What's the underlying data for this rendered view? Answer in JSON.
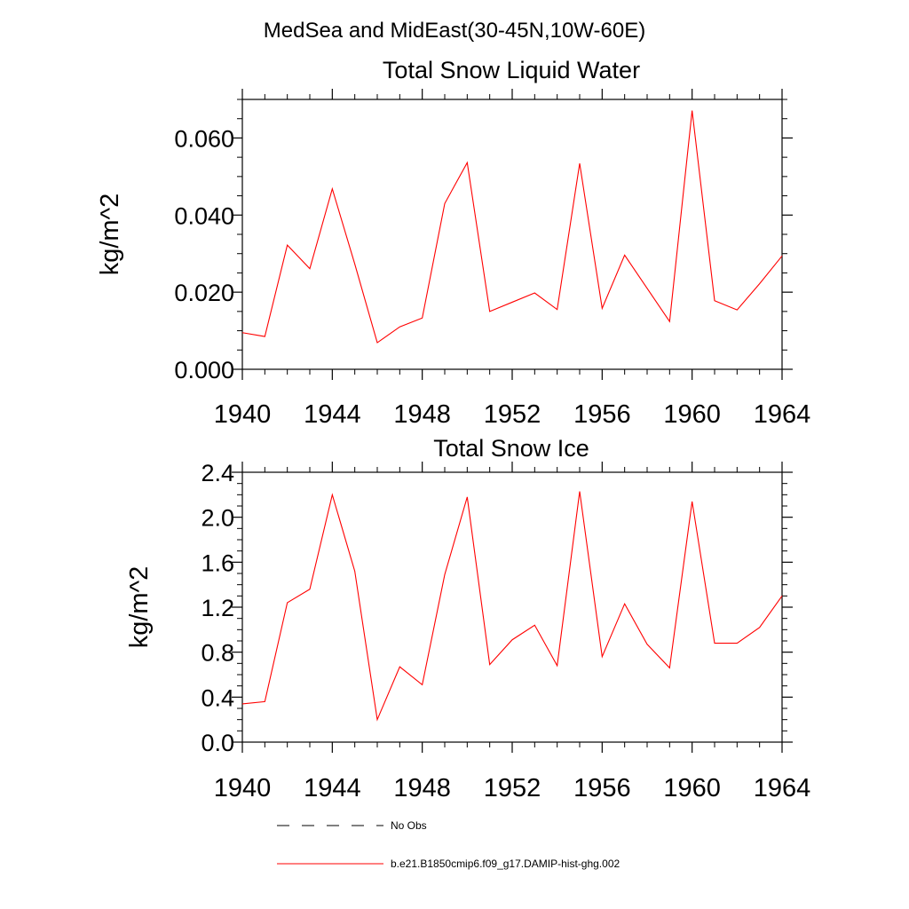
{
  "suptitle": "MedSea and MidEast(30-45N,10W-60E)",
  "colors": {
    "series": "#ff0000",
    "axes": "#000000",
    "noobs": "#000000"
  },
  "legend": {
    "items": [
      {
        "label": "No Obs",
        "style": "dashed"
      },
      {
        "label": "b.e21.B1850cmip6.f09_g17.DAMIP-hist-ghg.002",
        "style": "solid-red"
      }
    ]
  },
  "chart_data": [
    {
      "type": "line",
      "title": "Total Snow Liquid Water",
      "xlabel": "",
      "ylabel": "kg/m^2",
      "xlim": [
        1940,
        1964
      ],
      "ylim": [
        0,
        0.07
      ],
      "xticks": [
        1940,
        1944,
        1948,
        1952,
        1956,
        1960,
        1964
      ],
      "xtick_labels": [
        "1940",
        "1944",
        "1948",
        "1952",
        "1956",
        "1960",
        "1964"
      ],
      "yticks": [
        0,
        0.02,
        0.04,
        0.06
      ],
      "ytick_labels": [
        "0.000",
        "0.020",
        "0.040",
        "0.060"
      ],
      "x": [
        1940,
        1941,
        1942,
        1943,
        1944,
        1945,
        1946,
        1947,
        1948,
        1949,
        1950,
        1951,
        1952,
        1953,
        1954,
        1955,
        1956,
        1957,
        1958,
        1959,
        1960,
        1961,
        1962,
        1963,
        1964
      ],
      "series": [
        {
          "name": "b.e21.B1850cmip6.f09_g17.DAMIP-hist-ghg.002",
          "values": [
            0.0095,
            0.0085,
            0.0322,
            0.0261,
            0.0468,
            0.0273,
            0.0069,
            0.011,
            0.0133,
            0.043,
            0.0536,
            0.015,
            0.0174,
            0.0198,
            0.0155,
            0.0534,
            0.0158,
            0.0296,
            0.021,
            0.0124,
            0.0671,
            0.0178,
            0.0154,
            0.0222,
            0.0294
          ]
        }
      ]
    },
    {
      "type": "line",
      "title": "Total Snow Ice",
      "xlabel": "",
      "ylabel": "kg/m^2",
      "xlim": [
        1940,
        1964
      ],
      "ylim": [
        0,
        2.4
      ],
      "xticks": [
        1940,
        1944,
        1948,
        1952,
        1956,
        1960,
        1964
      ],
      "xtick_labels": [
        "1940",
        "1944",
        "1948",
        "1952",
        "1956",
        "1960",
        "1964"
      ],
      "yticks": [
        0,
        0.4,
        0.8,
        1.2,
        1.6,
        2.0,
        2.4
      ],
      "ytick_labels": [
        "0.0",
        "0.4",
        "0.8",
        "1.2",
        "1.6",
        "2.0",
        "2.4"
      ],
      "x": [
        1940,
        1941,
        1942,
        1943,
        1944,
        1945,
        1946,
        1947,
        1948,
        1949,
        1950,
        1951,
        1952,
        1953,
        1954,
        1955,
        1956,
        1957,
        1958,
        1959,
        1960,
        1961,
        1962,
        1963,
        1964
      ],
      "series": [
        {
          "name": "b.e21.B1850cmip6.f09_g17.DAMIP-hist-ghg.002",
          "values": [
            0.34,
            0.36,
            1.24,
            1.36,
            2.2,
            1.52,
            0.2,
            0.67,
            0.51,
            1.49,
            2.18,
            0.69,
            0.91,
            1.04,
            0.68,
            2.23,
            0.76,
            1.23,
            0.87,
            0.66,
            2.14,
            0.88,
            0.88,
            1.02,
            1.3
          ]
        }
      ]
    }
  ]
}
